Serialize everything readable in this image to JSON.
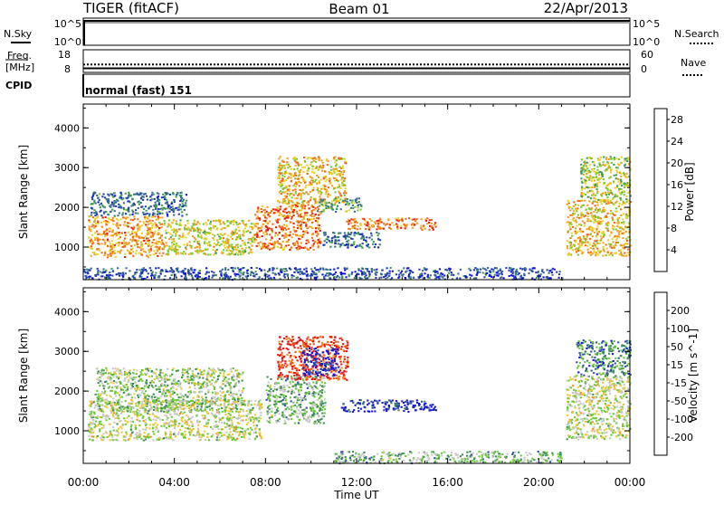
{
  "header": {
    "radar": "TIGER (fitACF)",
    "beam": "Beam 01",
    "date": "22/Apr/2013"
  },
  "status_panels": {
    "nsky_label": "N.Sky",
    "nsearch_label": "N.Search",
    "noise_ticks": [
      "10^5",
      "10^0"
    ],
    "freq_label": "Freq.",
    "freq_unit": "[MHz]",
    "freq_ticks": [
      "18",
      "8"
    ],
    "nave_label": "Nave",
    "nave_ticks": [
      "60",
      "0"
    ],
    "cpid_label": "CPID",
    "cpid_value": "normal (fast) 151",
    "frequency_mhz": 10.2,
    "nave_value": 21
  },
  "chart_data": [
    {
      "type": "heatmap",
      "title": "",
      "xlabel": "Time UT",
      "ylabel": "Slant Range [km]",
      "xticks": [
        "00:00",
        "04:00",
        "08:00",
        "12:00",
        "16:00",
        "20:00",
        "00:00"
      ],
      "yticks": [
        "1000",
        "2000",
        "3000",
        "4000"
      ],
      "xlim_hours": [
        0,
        24
      ],
      "ylim_km": [
        180,
        4600
      ],
      "colorbar": {
        "label": "Power [dB]",
        "ticks": [
          "4",
          "8",
          "12",
          "16",
          "20",
          "24",
          "28"
        ],
        "range": [
          0,
          30
        ],
        "colors": [
          "#1010e0",
          "#2040b0",
          "#3a6e8a",
          "#3f9a5a",
          "#7cc832",
          "#e6d228",
          "#f0a020",
          "#f06818",
          "#e81c10"
        ]
      },
      "scatter_regions": [
        {
          "t0": 0.2,
          "t1": 3.5,
          "r0": 760,
          "r1": 1800,
          "v": 22
        },
        {
          "t0": 3.5,
          "t1": 7.5,
          "r0": 820,
          "r1": 1700,
          "v": 18
        },
        {
          "t0": 7.5,
          "t1": 10.4,
          "r0": 950,
          "r1": 2100,
          "v": 24
        },
        {
          "t0": 0.3,
          "t1": 4.5,
          "r0": 1800,
          "r1": 2400,
          "v": 8
        },
        {
          "t0": 8.5,
          "t1": 11.5,
          "r0": 2100,
          "r1": 3300,
          "v": 20
        },
        {
          "t0": 10.2,
          "t1": 12.2,
          "r0": 1900,
          "r1": 2250,
          "v": 12
        },
        {
          "t0": 11.5,
          "t1": 15.5,
          "r0": 1450,
          "r1": 1750,
          "v": 24
        },
        {
          "t0": 10.5,
          "t1": 13.0,
          "r0": 1000,
          "r1": 1400,
          "v": 8
        },
        {
          "t0": 21.2,
          "t1": 24.0,
          "r0": 800,
          "r1": 2200,
          "v": 20
        },
        {
          "t0": 21.8,
          "t1": 24.0,
          "r0": 2200,
          "r1": 3300,
          "v": 16
        },
        {
          "t0": 0.0,
          "t1": 21.0,
          "r0": 200,
          "r1": 500,
          "v": 6
        }
      ]
    },
    {
      "type": "heatmap",
      "title": "",
      "xlabel": "Time UT",
      "ylabel": "Slant Range [km]",
      "xticks": [
        "00:00",
        "04:00",
        "08:00",
        "12:00",
        "16:00",
        "20:00",
        "00:00"
      ],
      "yticks": [
        "1000",
        "2000",
        "3000",
        "4000"
      ],
      "xlim_hours": [
        0,
        24
      ],
      "ylim_km": [
        180,
        4600
      ],
      "colorbar": {
        "label": "Velocity [m s^-1]",
        "ticks": [
          "200",
          "100",
          "50",
          "15",
          "-15",
          "-50",
          "-100",
          "-200"
        ],
        "range": [
          -250,
          250
        ],
        "colors": [
          "#1414d8",
          "#3250a0",
          "#3e8c5a",
          "#6cc83a",
          "#c8c8c8",
          "#e8c838",
          "#f08c20",
          "#f05014",
          "#e81010"
        ]
      },
      "scatter_regions": [
        {
          "t0": 0.2,
          "t1": 7.8,
          "r0": 780,
          "r1": 1800,
          "v": 0
        },
        {
          "t0": 0.5,
          "t1": 7.0,
          "r0": 1500,
          "r1": 2600,
          "v": -30
        },
        {
          "t0": 8.0,
          "t1": 10.6,
          "r0": 1200,
          "r1": 2400,
          "v": -60
        },
        {
          "t0": 8.5,
          "t1": 11.6,
          "r0": 2300,
          "r1": 3400,
          "v": 200
        },
        {
          "t0": 9.6,
          "t1": 11.2,
          "r0": 2400,
          "r1": 3100,
          "v": -220
        },
        {
          "t0": 11.3,
          "t1": 15.5,
          "r0": 1500,
          "r1": 1800,
          "v": -200
        },
        {
          "t0": 21.2,
          "t1": 24.0,
          "r0": 800,
          "r1": 2400,
          "v": 0
        },
        {
          "t0": 21.6,
          "t1": 24.0,
          "r0": 2400,
          "r1": 3300,
          "v": -120
        },
        {
          "t0": 11.0,
          "t1": 21.0,
          "r0": 200,
          "r1": 500,
          "v": -60
        }
      ]
    }
  ]
}
